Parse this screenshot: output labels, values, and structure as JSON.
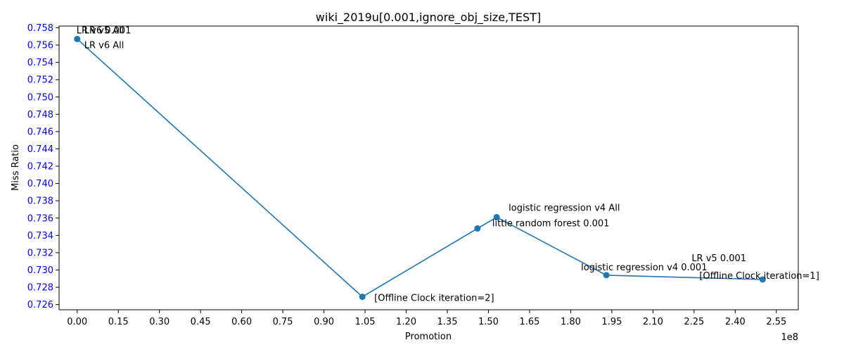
{
  "chart_data": {
    "type": "line",
    "title": "wiki_2019u[0.001,ignore_obj_size,TEST]",
    "xlabel": "Promotion",
    "ylabel": "Miss Ratio",
    "x_offset_label": "1e8",
    "x_scale": 100000000,
    "xlim": [
      -0.066,
      2.63
    ],
    "ylim": [
      0.7254,
      0.7582
    ],
    "x_ticks": [
      0.0,
      0.15,
      0.3,
      0.45,
      0.6,
      0.75,
      0.9,
      1.05,
      1.2,
      1.35,
      1.5,
      1.65,
      1.8,
      1.95,
      2.1,
      2.25,
      2.4,
      2.55
    ],
    "x_tick_labels": [
      "0.00",
      "0.15",
      "0.30",
      "0.45",
      "0.60",
      "0.75",
      "0.90",
      "1.05",
      "1.20",
      "1.35",
      "1.50",
      "1.65",
      "1.80",
      "1.95",
      "2.10",
      "2.25",
      "2.40",
      "2.55"
    ],
    "y_ticks": [
      0.726,
      0.728,
      0.73,
      0.732,
      0.734,
      0.736,
      0.738,
      0.74,
      0.742,
      0.744,
      0.746,
      0.748,
      0.75,
      0.752,
      0.754,
      0.756,
      0.758
    ],
    "y_tick_labels": [
      "0.726",
      "0.728",
      "0.730",
      "0.732",
      "0.734",
      "0.736",
      "0.738",
      "0.740",
      "0.742",
      "0.744",
      "0.746",
      "0.748",
      "0.750",
      "0.752",
      "0.754",
      "0.756",
      "0.758"
    ],
    "grid": false,
    "series": [
      {
        "color": "#1f77b4",
        "x": [
          0.0,
          1.04,
          1.46,
          1.53,
          1.93,
          2.5
        ],
        "y": [
          0.7567,
          0.7269,
          0.7348,
          0.7361,
          0.7294,
          0.7289
        ]
      }
    ],
    "annotations": [
      {
        "text": "LR v6 0.001",
        "x": 0.0,
        "y": 0.7567
      },
      {
        "text": "LR v5 All",
        "x": 0.0,
        "y": 0.7567
      },
      {
        "text": "LR v6 All",
        "x": 0.0,
        "y": 0.7567
      },
      {
        "text": "[Offline Clock iteration=2]",
        "x": 1.04,
        "y": 0.7269
      },
      {
        "text": "little random forest 0.001",
        "x": 1.46,
        "y": 0.7348
      },
      {
        "text": "logistic regression v4 All",
        "x": 1.53,
        "y": 0.7361
      },
      {
        "text": "logistic regression v4 0.001",
        "x": 1.93,
        "y": 0.7294
      },
      {
        "text": "LR v5 0.001",
        "x": 2.5,
        "y": 0.7289
      },
      {
        "text": "[Offline Clock iteration=1]",
        "x": 2.5,
        "y": 0.7289
      }
    ],
    "colors": {
      "line": "#1f77b4",
      "ytick_text": "#0000ff",
      "axis": "#000000"
    }
  }
}
